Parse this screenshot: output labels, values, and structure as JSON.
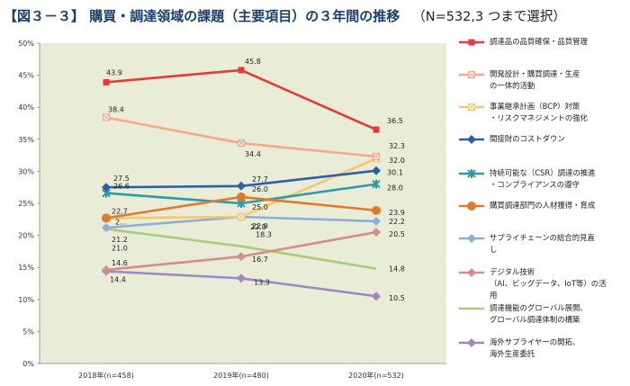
{
  "title": {
    "main": "【図３－３】 購買・調達領域の課題（主要項目）の３年間の推移",
    "sub": "（N=532,3 つまで選択）"
  },
  "chart_data": {
    "type": "line",
    "categories": [
      "2018年(n=458)",
      "2019年(n=480)",
      "2020年(n=532)"
    ],
    "y_ticks": [
      "0%",
      "5%",
      "10%",
      "15%",
      "20%",
      "25%",
      "30%",
      "35%",
      "40%",
      "45%",
      "50%"
    ],
    "ylim": [
      0,
      50
    ],
    "plot_background": "#e9ecd6",
    "grid": false,
    "legend_position": "right",
    "series": [
      {
        "name": "調達品の品質確保・品質管理",
        "color": "#e8393a",
        "marker": "square",
        "values": [
          43.9,
          45.8,
          36.5
        ],
        "labels": [
          "43.9",
          "45.8",
          "36.5"
        ]
      },
      {
        "name": "開発設計・購買調達・生産\nの一体的活動",
        "color": "#f2a98e",
        "marker": "x-square",
        "values": [
          38.4,
          34.4,
          32.3
        ],
        "labels": [
          "38.4",
          "34.4",
          "32.3"
        ]
      },
      {
        "name": "事業継承計画（BCP）対策\n・リスクマネジメントの強化",
        "color": "#f7c76d",
        "marker": "x-square",
        "values": [
          22.7,
          22.9,
          32.0
        ],
        "labels": [
          "2…",
          "22.9",
          "32.0"
        ]
      },
      {
        "name": "間接財のコストダウン",
        "color": "#2e5fa6",
        "marker": "diamond",
        "values": [
          27.5,
          27.7,
          30.1
        ],
        "labels": [
          "27.5",
          "27.7",
          "30.1"
        ]
      },
      {
        "name": "持続可能な（CSR）調達の推進\n・コンプライアンスの遵守",
        "color": "#2f9aa6",
        "marker": "x-star",
        "values": [
          26.6,
          25.0,
          28.0
        ],
        "labels": [
          "26.6",
          "25.0",
          "28.0"
        ]
      },
      {
        "name": "購買調達部門の人材獲得・育成",
        "color": "#e07b2c",
        "marker": "circle",
        "values": [
          22.7,
          26.0,
          23.9
        ],
        "labels": [
          "22.7",
          "26.0",
          "23.9"
        ]
      },
      {
        "name": "サプライチェーンの総合的見直\nし",
        "color": "#8bafd8",
        "marker": "diamond",
        "values": [
          21.2,
          22.9,
          22.2
        ],
        "labels": [
          "21.2",
          "22.9",
          "22.2"
        ]
      },
      {
        "name": "デジタル技術\n（AI、ビッグデータ、IoT等）の活\n用",
        "color": "#d98a8a",
        "marker": "diamond",
        "values": [
          14.6,
          16.7,
          20.5
        ],
        "labels": [
          "14.6",
          "16.7",
          "20.5"
        ]
      },
      {
        "name": "調達機能のグローバル展開、\nグローバル調達体制の構築",
        "color": "#a9cd7a",
        "marker": "none",
        "values": [
          21.0,
          18.3,
          14.8
        ],
        "labels": [
          "21.0",
          "18.3",
          "14.8"
        ]
      },
      {
        "name": "海外サプライヤーの開拓、\n海外生産委託",
        "color": "#9d88c2",
        "marker": "diamond",
        "values": [
          14.4,
          13.3,
          10.5
        ],
        "labels": [
          "14.4",
          "13.3",
          "10.5"
        ]
      }
    ]
  }
}
